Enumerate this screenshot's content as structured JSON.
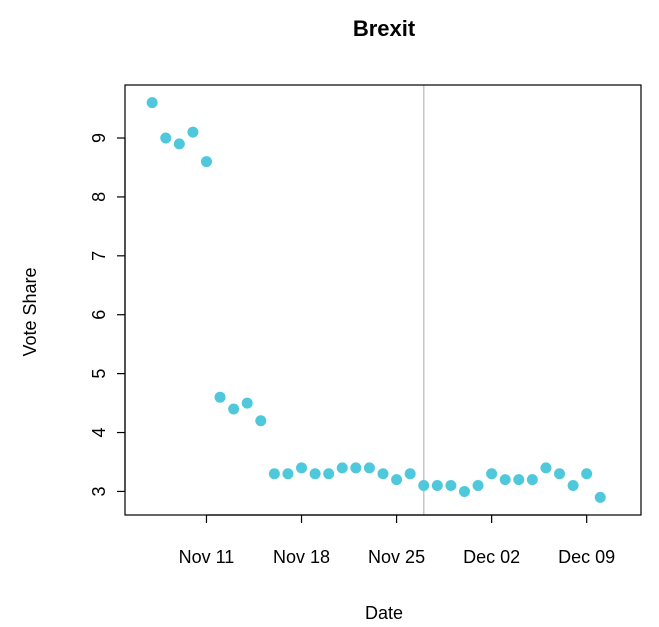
{
  "chart_data": {
    "type": "scatter",
    "title": "Brexit",
    "xlabel": "Date",
    "ylabel": "Vote Share",
    "x_ticks": [
      {
        "date": "2019-11-11",
        "label": "Nov 11"
      },
      {
        "date": "2019-11-18",
        "label": "Nov 18"
      },
      {
        "date": "2019-11-25",
        "label": "Nov 25"
      },
      {
        "date": "2019-12-02",
        "label": "Dec 02"
      },
      {
        "date": "2019-12-09",
        "label": "Dec 09"
      }
    ],
    "y_ticks": [
      3,
      4,
      5,
      6,
      7,
      8,
      9
    ],
    "xlim": [
      "2019-11-05",
      "2019-12-13"
    ],
    "ylim": [
      2.6,
      9.9
    ],
    "vline_date": "2019-11-27",
    "point_color": "#4fc8dc",
    "vline_color": "#c8c8c8",
    "points": [
      {
        "date": "2019-11-07",
        "value": 9.6
      },
      {
        "date": "2019-11-08",
        "value": 9.0
      },
      {
        "date": "2019-11-09",
        "value": 8.9
      },
      {
        "date": "2019-11-10",
        "value": 9.1
      },
      {
        "date": "2019-11-11",
        "value": 8.6
      },
      {
        "date": "2019-11-12",
        "value": 4.6
      },
      {
        "date": "2019-11-13",
        "value": 4.4
      },
      {
        "date": "2019-11-14",
        "value": 4.5
      },
      {
        "date": "2019-11-15",
        "value": 4.2
      },
      {
        "date": "2019-11-16",
        "value": 3.3
      },
      {
        "date": "2019-11-17",
        "value": 3.3
      },
      {
        "date": "2019-11-18",
        "value": 3.4
      },
      {
        "date": "2019-11-19",
        "value": 3.3
      },
      {
        "date": "2019-11-20",
        "value": 3.3
      },
      {
        "date": "2019-11-21",
        "value": 3.4
      },
      {
        "date": "2019-11-22",
        "value": 3.4
      },
      {
        "date": "2019-11-23",
        "value": 3.4
      },
      {
        "date": "2019-11-24",
        "value": 3.3
      },
      {
        "date": "2019-11-25",
        "value": 3.2
      },
      {
        "date": "2019-11-26",
        "value": 3.3
      },
      {
        "date": "2019-11-27",
        "value": 3.1
      },
      {
        "date": "2019-11-28",
        "value": 3.1
      },
      {
        "date": "2019-11-29",
        "value": 3.1
      },
      {
        "date": "2019-11-30",
        "value": 3.0
      },
      {
        "date": "2019-12-01",
        "value": 3.1
      },
      {
        "date": "2019-12-02",
        "value": 3.3
      },
      {
        "date": "2019-12-03",
        "value": 3.2
      },
      {
        "date": "2019-12-04",
        "value": 3.2
      },
      {
        "date": "2019-12-05",
        "value": 3.2
      },
      {
        "date": "2019-12-06",
        "value": 3.4
      },
      {
        "date": "2019-12-07",
        "value": 3.3
      },
      {
        "date": "2019-12-08",
        "value": 3.1
      },
      {
        "date": "2019-12-09",
        "value": 3.3
      },
      {
        "date": "2019-12-10",
        "value": 2.9
      }
    ]
  }
}
